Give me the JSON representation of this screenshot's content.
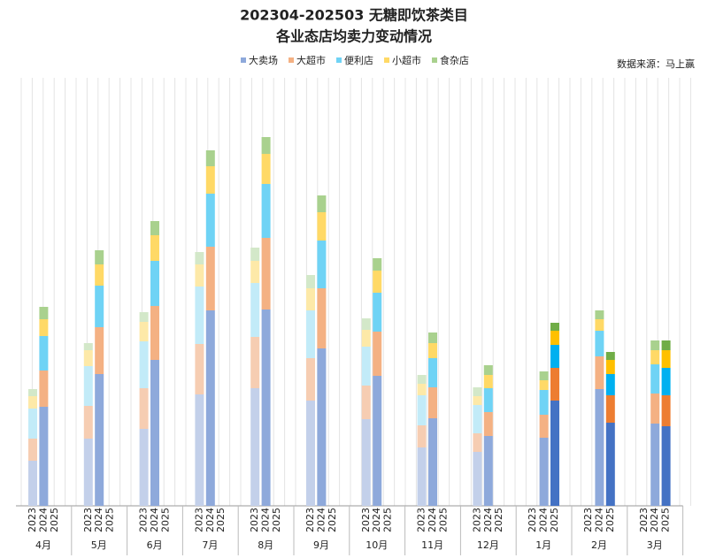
{
  "chart_data": {
    "type": "grouped-stacked-bar",
    "title": "202304-202503 无糖即饮茶类目",
    "subtitle": "各业态店均卖力变动情况",
    "source": "数据来源：马上赢",
    "categories": [
      "4月",
      "5月",
      "6月",
      "7月",
      "8月",
      "9月",
      "10月",
      "11月",
      "12月",
      "1月",
      "2月",
      "3月"
    ],
    "groups": [
      "2023",
      "2024",
      "2025"
    ],
    "ylim": [
      0,
      484
    ],
    "series": [
      {
        "name": "大卖场",
        "colors": [
          "#c3d0ea",
          "#8ea9db",
          "#4472c4"
        ],
        "values": [
          [
            51,
            112,
            null
          ],
          [
            76,
            149,
            null
          ],
          [
            87,
            165,
            null
          ],
          [
            126,
            221,
            null
          ],
          [
            133,
            222,
            null
          ],
          [
            119,
            178,
            null
          ],
          [
            98,
            147,
            null
          ],
          [
            66,
            99,
            null
          ],
          [
            61,
            79,
            null
          ],
          [
            null,
            77,
            119
          ],
          [
            null,
            132,
            94
          ],
          [
            null,
            93,
            90
          ]
        ]
      },
      {
        "name": "大超市",
        "colors": [
          "#f6cdb2",
          "#f4b183",
          "#ed7d31"
        ],
        "values": [
          [
            25,
            41,
            null
          ],
          [
            37,
            53,
            null
          ],
          [
            46,
            61,
            null
          ],
          [
            57,
            72,
            null
          ],
          [
            58,
            81,
            null
          ],
          [
            48,
            68,
            null
          ],
          [
            38,
            50,
            null
          ],
          [
            25,
            35,
            null
          ],
          [
            21,
            27,
            null
          ],
          [
            null,
            26,
            37
          ],
          [
            null,
            37,
            31
          ],
          [
            null,
            34,
            35
          ]
        ]
      },
      {
        "name": "便利店",
        "colors": [
          "#c2ebf8",
          "#6fd3f5",
          "#00b0f0"
        ],
        "values": [
          [
            34,
            39,
            null
          ],
          [
            45,
            47,
            null
          ],
          [
            53,
            51,
            null
          ],
          [
            65,
            60,
            null
          ],
          [
            61,
            61,
            null
          ],
          [
            54,
            54,
            null
          ],
          [
            44,
            44,
            null
          ],
          [
            34,
            33,
            null
          ],
          [
            32,
            27,
            null
          ],
          [
            null,
            28,
            26
          ],
          [
            null,
            29,
            24
          ],
          [
            null,
            33,
            31
          ]
        ]
      },
      {
        "name": "小超市",
        "colors": [
          "#fde9a8",
          "#ffd966",
          "#ffc000"
        ],
        "values": [
          [
            14,
            19,
            null
          ],
          [
            18,
            24,
            null
          ],
          [
            22,
            29,
            null
          ],
          [
            25,
            31,
            null
          ],
          [
            25,
            34,
            null
          ],
          [
            25,
            32,
            null
          ],
          [
            19,
            25,
            null
          ],
          [
            13,
            17,
            null
          ],
          [
            10,
            15,
            null
          ],
          [
            null,
            11,
            16
          ],
          [
            null,
            13,
            16
          ],
          [
            null,
            16,
            20
          ]
        ]
      },
      {
        "name": "食杂店",
        "colors": [
          "#d3e8c9",
          "#a9d18e",
          "#70ad47"
        ],
        "values": [
          [
            8,
            14,
            null
          ],
          [
            8,
            16,
            null
          ],
          [
            11,
            16,
            null
          ],
          [
            14,
            18,
            null
          ],
          [
            15,
            19,
            null
          ],
          [
            15,
            19,
            null
          ],
          [
            13,
            14,
            null
          ],
          [
            10,
            12,
            null
          ],
          [
            10,
            11,
            null
          ],
          [
            null,
            10,
            9
          ],
          [
            null,
            10,
            9
          ],
          [
            null,
            11,
            11
          ]
        ]
      }
    ]
  }
}
